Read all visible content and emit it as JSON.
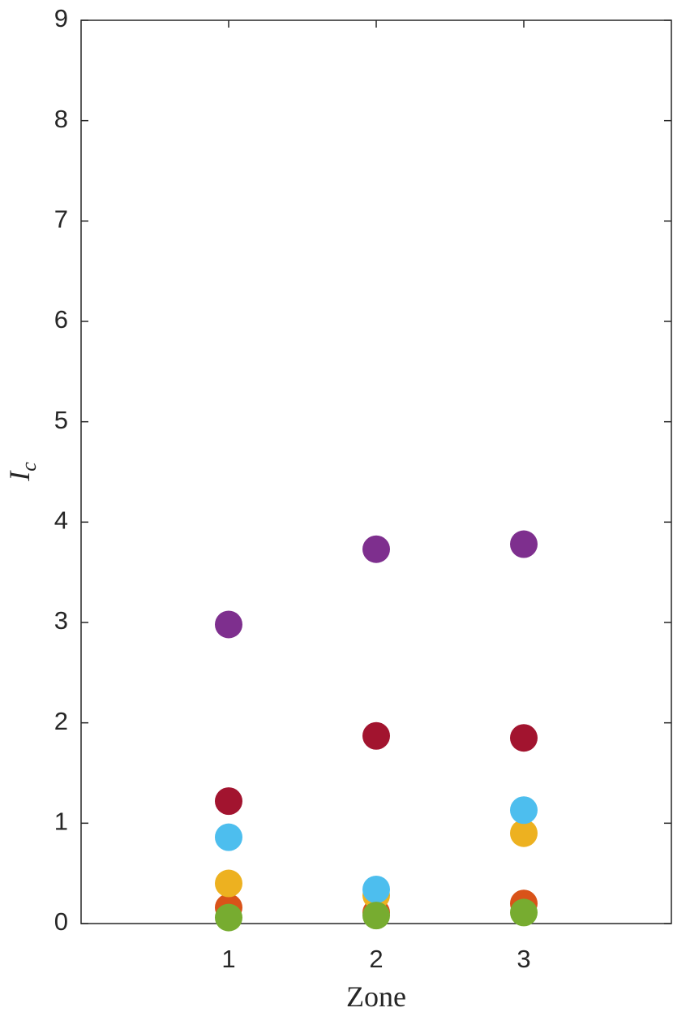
{
  "chart_data": {
    "type": "scatter",
    "xlabel": "Zone",
    "ylabel": "I",
    "ylabel_subscript": "c",
    "x": [
      1,
      2,
      3
    ],
    "series": [
      {
        "color": "#D95319",
        "values": [
          0.16,
          0.11,
          0.2
        ]
      },
      {
        "color": "#EDB120",
        "values": [
          0.4,
          0.28,
          0.9
        ]
      },
      {
        "color": "#7E2F8E",
        "values": [
          2.98,
          3.73,
          3.78
        ]
      },
      {
        "color": "#A2142F",
        "values": [
          1.22,
          1.87,
          1.85
        ]
      },
      {
        "color": "#4DBEEE",
        "values": [
          0.86,
          0.34,
          1.13
        ]
      },
      {
        "color": "#77AC30",
        "values": [
          0.06,
          0.08,
          0.11
        ]
      }
    ],
    "xlim": [
      0,
      4
    ],
    "xticks": [
      1,
      2,
      3
    ],
    "ylim": [
      0,
      9
    ],
    "yticks": [
      0,
      1,
      2,
      3,
      4,
      5,
      6,
      7,
      8,
      9
    ]
  }
}
